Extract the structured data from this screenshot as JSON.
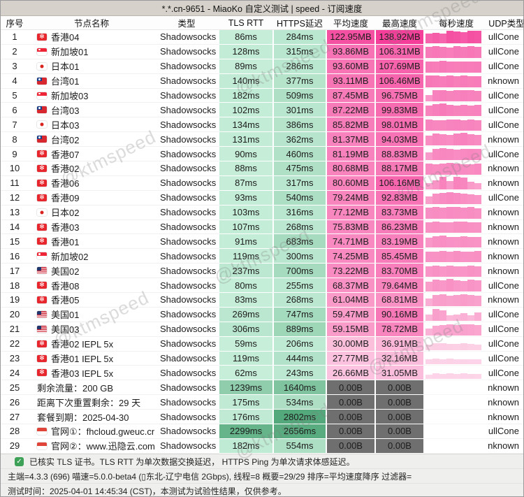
{
  "window": {
    "title": "*.*.cn-9651 - MiaoKo 自定义测试 | speed - 订阅速度"
  },
  "watermark": {
    "text": "@ktmspeed"
  },
  "colors": {
    "latency_low": "#cbf1dd",
    "latency_high": "#4fa778",
    "speed_low": "#fde2ef",
    "speed_high": "#f43e99",
    "speed_zero_bg": "#6f6f6f",
    "titlebar_bg": "#d6d2cb",
    "check_green": "#3da257"
  },
  "table": {
    "columns": [
      "序号",
      "节点名称",
      "类型",
      "TLS RTT",
      "HTTPS延迟",
      "平均速度",
      "最高速度",
      "每秒速度",
      "UDP类型"
    ],
    "rows": [
      {
        "no": 1,
        "flag": "hk",
        "name": "香港04",
        "type": "Shadowsocks",
        "tls_ms": 86,
        "https_ms": 284,
        "avg": "122.95MB",
        "max": "138.92MB",
        "udp": "FullCone",
        "bars": [
          0.8,
          0.85,
          0.78,
          1,
          0.97,
          0.9,
          1,
          0.98
        ]
      },
      {
        "no": 2,
        "flag": "sg",
        "name": "新加坡01",
        "type": "Shadowsocks",
        "tls_ms": 128,
        "https_ms": 315,
        "avg": "93.86MB",
        "max": "106.31MB",
        "udp": "FullCone",
        "bars": [
          0.88,
          0.95,
          0.9,
          0.85,
          0.92,
          0.88,
          0.95,
          0.9
        ]
      },
      {
        "no": 3,
        "flag": "jp",
        "name": "日本01",
        "type": "Shadowsocks",
        "tls_ms": 89,
        "https_ms": 286,
        "avg": "93.60MB",
        "max": "107.69MB",
        "udp": "FullCone",
        "bars": [
          0.9,
          0.85,
          0.92,
          0.88,
          0.85,
          0.9,
          0.87,
          0.9
        ]
      },
      {
        "no": 4,
        "flag": "tw",
        "name": "台湾01",
        "type": "Shadowsocks",
        "tls_ms": 140,
        "https_ms": 377,
        "avg": "93.11MB",
        "max": "106.46MB",
        "udp": "Unknown",
        "bars": [
          0.95,
          0.9,
          0.88,
          0.92,
          0.86,
          0.9,
          0.85,
          0.88
        ]
      },
      {
        "no": 5,
        "flag": "sg",
        "name": "新加坡03",
        "type": "Shadowsocks",
        "tls_ms": 182,
        "https_ms": 509,
        "avg": "87.45MB",
        "max": "96.75MB",
        "udp": "FullCone",
        "bars": [
          0.55,
          0.9,
          0.92,
          0.88,
          0.9,
          0.93,
          0.9,
          0.88
        ]
      },
      {
        "no": 6,
        "flag": "tw",
        "name": "台湾03",
        "type": "Shadowsocks",
        "tls_ms": 102,
        "https_ms": 301,
        "avg": "87.22MB",
        "max": "99.83MB",
        "udp": "FullCone",
        "bars": [
          0.85,
          0.95,
          1,
          0.92,
          0.88,
          0.9,
          0.86,
          0.9
        ]
      },
      {
        "no": 7,
        "flag": "jp",
        "name": "日本03",
        "type": "Shadowsocks",
        "tls_ms": 134,
        "https_ms": 386,
        "avg": "85.82MB",
        "max": "98.01MB",
        "udp": "FullCone",
        "bars": [
          0.9,
          0.86,
          0.84,
          0.9,
          0.92,
          0.87,
          0.9,
          0.84
        ]
      },
      {
        "no": 8,
        "flag": "tw",
        "name": "台湾02",
        "type": "Shadowsocks",
        "tls_ms": 131,
        "https_ms": 362,
        "avg": "81.37MB",
        "max": "94.03MB",
        "udp": "Unknown",
        "bars": [
          0.8,
          0.95,
          0.88,
          0.84,
          0.96,
          1,
          0.9,
          0.86
        ]
      },
      {
        "no": 9,
        "flag": "hk",
        "name": "香港07",
        "type": "Shadowsocks",
        "tls_ms": 90,
        "https_ms": 460,
        "avg": "81.19MB",
        "max": "88.83MB",
        "udp": "FullCone",
        "bars": [
          0.6,
          0.88,
          0.95,
          0.9,
          0.84,
          0.88,
          0.92,
          0.88
        ]
      },
      {
        "no": 10,
        "flag": "hk",
        "name": "香港02",
        "type": "Shadowsocks",
        "tls_ms": 88,
        "https_ms": 475,
        "avg": "80.68MB",
        "max": "88.17MB",
        "udp": "Unknown",
        "bars": [
          0.88,
          0.84,
          0.88,
          0.92,
          0.88,
          0.86,
          0.84,
          0.88
        ]
      },
      {
        "no": 11,
        "flag": "hk",
        "name": "香港06",
        "type": "Shadowsocks",
        "tls_ms": 87,
        "https_ms": 317,
        "avg": "80.60MB",
        "max": "106.16MB",
        "udp": "Unknown",
        "bars": [
          0.5,
          0.72,
          1,
          0.65,
          1,
          0.95,
          0.6,
          0.52
        ]
      },
      {
        "no": 12,
        "flag": "hk",
        "name": "香港09",
        "type": "Shadowsocks",
        "tls_ms": 93,
        "https_ms": 540,
        "avg": "79.24MB",
        "max": "92.83MB",
        "udp": "FullCone",
        "bars": [
          0.6,
          0.82,
          0.9,
          0.95,
          0.9,
          0.84,
          0.78,
          0.72
        ]
      },
      {
        "no": 13,
        "flag": "jp",
        "name": "日本02",
        "type": "Shadowsocks",
        "tls_ms": 103,
        "https_ms": 316,
        "avg": "77.12MB",
        "max": "83.73MB",
        "udp": "Unknown",
        "bars": [
          0.85,
          0.9,
          0.87,
          0.92,
          0.9,
          0.87,
          0.9,
          0.84
        ]
      },
      {
        "no": 14,
        "flag": "hk",
        "name": "香港03",
        "type": "Shadowsocks",
        "tls_ms": 107,
        "https_ms": 268,
        "avg": "75.83MB",
        "max": "86.23MB",
        "udp": "Unknown",
        "bars": [
          0.88,
          0.92,
          0.86,
          0.84,
          0.9,
          0.92,
          0.88,
          0.86
        ]
      },
      {
        "no": 15,
        "flag": "hk",
        "name": "香港01",
        "type": "Shadowsocks",
        "tls_ms": 91,
        "https_ms": 683,
        "avg": "74.71MB",
        "max": "83.19MB",
        "udp": "Unknown",
        "bars": [
          0.78,
          0.9,
          0.95,
          0.88,
          0.84,
          0.9,
          0.86,
          0.84
        ]
      },
      {
        "no": 16,
        "flag": "sg",
        "name": "新加坡02",
        "type": "Shadowsocks",
        "tls_ms": 119,
        "https_ms": 300,
        "avg": "74.25MB",
        "max": "85.45MB",
        "udp": "Unknown",
        "bars": [
          0.88,
          0.86,
          0.9,
          0.84,
          0.92,
          0.88,
          0.86,
          0.9
        ]
      },
      {
        "no": 17,
        "flag": "us",
        "name": "美国02",
        "type": "Shadowsocks",
        "tls_ms": 237,
        "https_ms": 700,
        "avg": "73.22MB",
        "max": "83.70MB",
        "udp": "Unknown",
        "bars": [
          0.84,
          0.9,
          0.84,
          0.88,
          0.86,
          0.84,
          0.9,
          0.86
        ]
      },
      {
        "no": 18,
        "flag": "hk",
        "name": "香港08",
        "type": "Shadowsocks",
        "tls_ms": 80,
        "https_ms": 255,
        "avg": "68.37MB",
        "max": "79.64MB",
        "udp": "FullCone",
        "bars": [
          0.78,
          0.95,
          0.88,
          1,
          0.9,
          0.84,
          0.95,
          0.88
        ]
      },
      {
        "no": 19,
        "flag": "hk",
        "name": "香港05",
        "type": "Shadowsocks",
        "tls_ms": 83,
        "https_ms": 268,
        "avg": "61.04MB",
        "max": "68.81MB",
        "udp": "Unknown",
        "bars": [
          0.6,
          0.9,
          0.95,
          0.85,
          0.9,
          0.96,
          0.9,
          0.84
        ]
      },
      {
        "no": 20,
        "flag": "us",
        "name": "美国01",
        "type": "Shadowsocks",
        "tls_ms": 269,
        "https_ms": 747,
        "avg": "59.47MB",
        "max": "90.16MB",
        "udp": "FullCone",
        "bars": [
          0.5,
          0.95,
          0.85,
          0.45,
          0.5,
          0.58,
          0.42,
          0.68
        ]
      },
      {
        "no": 21,
        "flag": "us",
        "name": "美国03",
        "type": "Shadowsocks",
        "tls_ms": 306,
        "https_ms": 889,
        "avg": "59.15MB",
        "max": "78.72MB",
        "udp": "FullCone",
        "bars": [
          0.55,
          0.75,
          0.82,
          0.86,
          0.8,
          0.9,
          0.86,
          0.8
        ]
      },
      {
        "no": 22,
        "flag": "hk",
        "name": "香港02 IEPL 5x",
        "type": "Shadowsocks",
        "tls_ms": 59,
        "https_ms": 206,
        "avg": "30.00MB",
        "max": "36.91MB",
        "udp": "FullCone",
        "bars": [
          0.45,
          0.52,
          0.55,
          0.5,
          0.46,
          0.52,
          0.48,
          0.44
        ]
      },
      {
        "no": 23,
        "flag": "hk",
        "name": "香港01 IEPL 5x",
        "type": "Shadowsocks",
        "tls_ms": 119,
        "https_ms": 444,
        "avg": "27.77MB",
        "max": "32.16MB",
        "udp": "FullCone",
        "bars": [
          0.4,
          0.45,
          0.42,
          0.46,
          0.4,
          0.44,
          0.42,
          0.4
        ]
      },
      {
        "no": 24,
        "flag": "hk",
        "name": "香港03 IEPL 5x",
        "type": "Shadowsocks",
        "tls_ms": 62,
        "https_ms": 243,
        "avg": "26.66MB",
        "max": "31.05MB",
        "udp": "FullCone",
        "bars": [
          0.38,
          0.46,
          0.42,
          0.48,
          0.4,
          0.46,
          0.44,
          0.4
        ]
      },
      {
        "no": 25,
        "flag": "",
        "name": "剩余流量：200 GB",
        "type": "Shadowsocks",
        "tls_ms": 1239,
        "https_ms": 1640,
        "avg": "0.00B",
        "max": "0.00B",
        "udp": "Unknown",
        "bars": []
      },
      {
        "no": 26,
        "flag": "",
        "name": "距离下次重置剩余：29 天",
        "type": "Shadowsocks",
        "tls_ms": 175,
        "https_ms": 534,
        "avg": "0.00B",
        "max": "0.00B",
        "udp": "Unknown",
        "bars": []
      },
      {
        "no": 27,
        "flag": "",
        "name": "套餐到期：2025-04-30",
        "type": "Shadowsocks",
        "tls_ms": 176,
        "https_ms": 2802,
        "avg": "0.00B",
        "max": "0.00B",
        "udp": "Unknown",
        "bars": []
      },
      {
        "no": 28,
        "flag": "id",
        "name": "官网①：fhcloud.gweuc.cn",
        "type": "Shadowsocks",
        "tls_ms": 2299,
        "https_ms": 2656,
        "avg": "0.00B",
        "max": "0.00B",
        "udp": "FullCone",
        "bars": []
      },
      {
        "no": 29,
        "flag": "id",
        "name": "官网②：www.迅隐云.com",
        "type": "Shadowsocks",
        "tls_ms": 182,
        "https_ms": 554,
        "avg": "0.00B",
        "max": "0.00B",
        "udp": "Unknown",
        "bars": []
      }
    ]
  },
  "footer": {
    "line1": "已核实 TLS 证书。TLS RTT 为单次数据交换延迟， HTTPS Ping 为单次请求体感延迟。",
    "line2": "主端=4.3.3 (696) 喵速=5.0.0-beta4 (▯东北-辽宁电信 2Gbps), 线程=8 概要=29/29 排序=平均速度降序 过滤器=",
    "line3": "测试时间：2025-04-01 14:45:34 (CST)，本测试为试验性结果，仅供参考。"
  }
}
